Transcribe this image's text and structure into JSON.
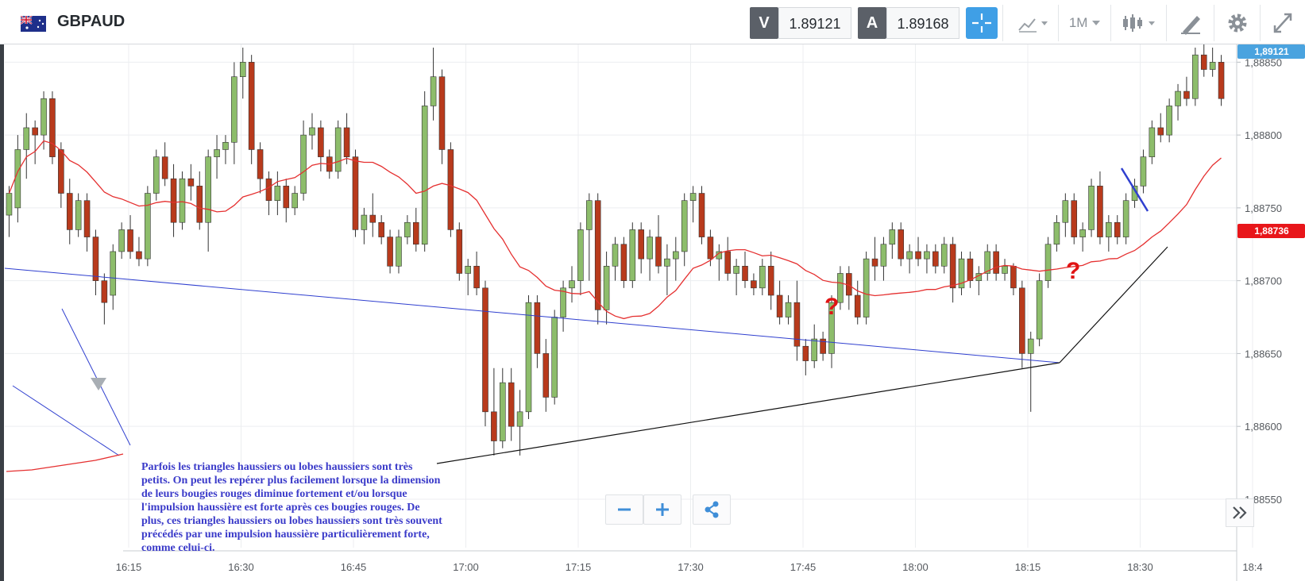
{
  "header": {
    "symbol": "GBPAUD",
    "sell_label": "V",
    "sell_price": "1.89121",
    "buy_label": "A",
    "buy_price": "1.89168",
    "timeframe": "1M"
  },
  "chart_data": {
    "type": "candlestick",
    "title": "GBPAUD",
    "y_ticks": [
      "1,88850",
      "1,88800",
      "1,88750",
      "1,88700",
      "1,88650",
      "1,88600",
      "1,88550"
    ],
    "x_ticks": [
      "16:15",
      "16:30",
      "16:45",
      "17:00",
      "17:15",
      "17:30",
      "17:45",
      "18:00",
      "18:15",
      "18:30",
      "18:4"
    ],
    "ylim": [
      1.8852,
      1.8886
    ],
    "current_price_tag": "1,89121",
    "ma_price_tag": "1,88736",
    "candles_ohlc": [
      [
        1.88745,
        1.88765,
        1.8873,
        1.8876
      ],
      [
        1.8875,
        1.888,
        1.8874,
        1.8879
      ],
      [
        1.8879,
        1.88815,
        1.8877,
        1.88805
      ],
      [
        1.88805,
        1.8881,
        1.8878,
        1.888
      ],
      [
        1.888,
        1.8883,
        1.8879,
        1.88825
      ],
      [
        1.88825,
        1.8883,
        1.8878,
        1.88785
      ],
      [
        1.8879,
        1.88795,
        1.8875,
        1.8876
      ],
      [
        1.8876,
        1.8877,
        1.88725,
        1.88735
      ],
      [
        1.88735,
        1.8876,
        1.8873,
        1.88755
      ],
      [
        1.88755,
        1.8876,
        1.8872,
        1.8873
      ],
      [
        1.8873,
        1.88735,
        1.8869,
        1.887
      ],
      [
        1.887,
        1.88705,
        1.8867,
        1.88685
      ],
      [
        1.8869,
        1.88725,
        1.8868,
        1.8872
      ],
      [
        1.8872,
        1.8874,
        1.88715,
        1.88735
      ],
      [
        1.88735,
        1.88745,
        1.88715,
        1.8872
      ],
      [
        1.8872,
        1.8873,
        1.8871,
        1.88715
      ],
      [
        1.88715,
        1.88765,
        1.8871,
        1.8876
      ],
      [
        1.8876,
        1.8879,
        1.88755,
        1.88785
      ],
      [
        1.88785,
        1.88795,
        1.88765,
        1.8877
      ],
      [
        1.8877,
        1.8878,
        1.8873,
        1.8874
      ],
      [
        1.8874,
        1.88775,
        1.88735,
        1.8877
      ],
      [
        1.8877,
        1.8878,
        1.88755,
        1.88765
      ],
      [
        1.88765,
        1.88775,
        1.88735,
        1.8874
      ],
      [
        1.8874,
        1.8879,
        1.8872,
        1.88785
      ],
      [
        1.88785,
        1.888,
        1.8877,
        1.8879
      ],
      [
        1.8879,
        1.888,
        1.8878,
        1.88795
      ],
      [
        1.88795,
        1.8885,
        1.8878,
        1.8884
      ],
      [
        1.8884,
        1.8886,
        1.88825,
        1.8885
      ],
      [
        1.8885,
        1.88855,
        1.8878,
        1.8879
      ],
      [
        1.8879,
        1.88795,
        1.8876,
        1.8877
      ],
      [
        1.8877,
        1.88775,
        1.88745,
        1.88755
      ],
      [
        1.88755,
        1.88775,
        1.88745,
        1.88765
      ],
      [
        1.88765,
        1.8877,
        1.8874,
        1.8875
      ],
      [
        1.8875,
        1.88765,
        1.88745,
        1.8876
      ],
      [
        1.8876,
        1.8881,
        1.88755,
        1.888
      ],
      [
        1.888,
        1.88815,
        1.8879,
        1.88805
      ],
      [
        1.88805,
        1.8881,
        1.88775,
        1.88785
      ],
      [
        1.88785,
        1.8879,
        1.8877,
        1.88775
      ],
      [
        1.88775,
        1.8881,
        1.8877,
        1.88805
      ],
      [
        1.88805,
        1.88815,
        1.8878,
        1.88785
      ],
      [
        1.88785,
        1.8879,
        1.8873,
        1.88735
      ],
      [
        1.88735,
        1.8875,
        1.88725,
        1.88745
      ],
      [
        1.88745,
        1.8876,
        1.8873,
        1.8874
      ],
      [
        1.8874,
        1.88745,
        1.88725,
        1.8873
      ],
      [
        1.8873,
        1.88735,
        1.88705,
        1.8871
      ],
      [
        1.8871,
        1.88735,
        1.88705,
        1.8873
      ],
      [
        1.8873,
        1.88745,
        1.88725,
        1.8874
      ],
      [
        1.8874,
        1.8875,
        1.8872,
        1.88725
      ],
      [
        1.88725,
        1.8883,
        1.8872,
        1.8882
      ],
      [
        1.8882,
        1.8886,
        1.8881,
        1.8884
      ],
      [
        1.8884,
        1.88845,
        1.8878,
        1.8879
      ],
      [
        1.8879,
        1.88795,
        1.8873,
        1.88735
      ],
      [
        1.88735,
        1.8874,
        1.887,
        1.88705
      ],
      [
        1.88705,
        1.88715,
        1.8869,
        1.8871
      ],
      [
        1.8871,
        1.8872,
        1.8869,
        1.88695
      ],
      [
        1.88695,
        1.887,
        1.886,
        1.8861
      ],
      [
        1.8861,
        1.8864,
        1.8858,
        1.8859
      ],
      [
        1.8859,
        1.8864,
        1.88585,
        1.8863
      ],
      [
        1.8863,
        1.8864,
        1.8859,
        1.886
      ],
      [
        1.886,
        1.88625,
        1.8858,
        1.8861
      ],
      [
        1.8861,
        1.8869,
        1.88605,
        1.88685
      ],
      [
        1.88685,
        1.8869,
        1.8864,
        1.8865
      ],
      [
        1.8865,
        1.8866,
        1.8861,
        1.8862
      ],
      [
        1.8862,
        1.8868,
        1.88615,
        1.88675
      ],
      [
        1.88675,
        1.887,
        1.88665,
        1.88695
      ],
      [
        1.88695,
        1.8871,
        1.88685,
        1.887
      ],
      [
        1.887,
        1.8874,
        1.8869,
        1.88735
      ],
      [
        1.88735,
        1.8876,
        1.887,
        1.88755
      ],
      [
        1.88755,
        1.8876,
        1.8867,
        1.8868
      ],
      [
        1.8868,
        1.8872,
        1.8867,
        1.8871
      ],
      [
        1.8871,
        1.8873,
        1.887,
        1.88725
      ],
      [
        1.88725,
        1.8873,
        1.88695,
        1.887
      ],
      [
        1.887,
        1.8874,
        1.88695,
        1.88735
      ],
      [
        1.88735,
        1.8874,
        1.88705,
        1.88715
      ],
      [
        1.88715,
        1.88735,
        1.887,
        1.8873
      ],
      [
        1.8873,
        1.88745,
        1.88705,
        1.8871
      ],
      [
        1.8871,
        1.88725,
        1.8869,
        1.88715
      ],
      [
        1.88715,
        1.8873,
        1.887,
        1.8872
      ],
      [
        1.8872,
        1.8876,
        1.8871,
        1.88755
      ],
      [
        1.88755,
        1.88765,
        1.8874,
        1.8876
      ],
      [
        1.8876,
        1.88765,
        1.88725,
        1.8873
      ],
      [
        1.8873,
        1.88735,
        1.8871,
        1.88715
      ],
      [
        1.88715,
        1.88725,
        1.887,
        1.8872
      ],
      [
        1.8872,
        1.8873,
        1.887,
        1.88705
      ],
      [
        1.88705,
        1.88715,
        1.8869,
        1.8871
      ],
      [
        1.8871,
        1.8872,
        1.88695,
        1.887
      ],
      [
        1.887,
        1.88705,
        1.8869,
        1.88695
      ],
      [
        1.88695,
        1.88715,
        1.8869,
        1.8871
      ],
      [
        1.8871,
        1.8872,
        1.8868,
        1.8869
      ],
      [
        1.8869,
        1.887,
        1.8867,
        1.88675
      ],
      [
        1.88675,
        1.8869,
        1.8867,
        1.88685
      ],
      [
        1.88685,
        1.887,
        1.88645,
        1.88655
      ],
      [
        1.88655,
        1.8866,
        1.88635,
        1.88645
      ],
      [
        1.88645,
        1.8867,
        1.8864,
        1.8866
      ],
      [
        1.8866,
        1.88665,
        1.88645,
        1.8865
      ],
      [
        1.8865,
        1.8869,
        1.8864,
        1.88685
      ],
      [
        1.88685,
        1.8871,
        1.8868,
        1.88705
      ],
      [
        1.88705,
        1.8871,
        1.8868,
        1.8869
      ],
      [
        1.8869,
        1.887,
        1.8867,
        1.88675
      ],
      [
        1.88675,
        1.8872,
        1.8867,
        1.88715
      ],
      [
        1.88715,
        1.8873,
        1.887,
        1.8871
      ],
      [
        1.8871,
        1.8873,
        1.887,
        1.88725
      ],
      [
        1.88725,
        1.8874,
        1.88715,
        1.88735
      ],
      [
        1.88735,
        1.8874,
        1.8871,
        1.88715
      ],
      [
        1.88715,
        1.88725,
        1.88705,
        1.8872
      ],
      [
        1.8872,
        1.8873,
        1.8871,
        1.88715
      ],
      [
        1.88715,
        1.88725,
        1.88705,
        1.8872
      ],
      [
        1.8872,
        1.88725,
        1.88705,
        1.8871
      ],
      [
        1.8871,
        1.8873,
        1.88705,
        1.88725
      ],
      [
        1.88725,
        1.8873,
        1.88685,
        1.88695
      ],
      [
        1.88695,
        1.8872,
        1.8869,
        1.88715
      ],
      [
        1.88715,
        1.8872,
        1.88695,
        1.887
      ],
      [
        1.887,
        1.8871,
        1.8869,
        1.88705
      ],
      [
        1.88705,
        1.88725,
        1.887,
        1.8872
      ],
      [
        1.8872,
        1.88725,
        1.887,
        1.88705
      ],
      [
        1.88705,
        1.88715,
        1.887,
        1.8871
      ],
      [
        1.8871,
        1.88712,
        1.8869,
        1.88695
      ],
      [
        1.88695,
        1.887,
        1.8864,
        1.8865
      ],
      [
        1.8865,
        1.88665,
        1.8861,
        1.8866
      ],
      [
        1.8866,
        1.88705,
        1.88655,
        1.887
      ],
      [
        1.887,
        1.8873,
        1.88695,
        1.88725
      ],
      [
        1.88725,
        1.88745,
        1.8872,
        1.8874
      ],
      [
        1.8874,
        1.8876,
        1.8873,
        1.88755
      ],
      [
        1.88755,
        1.8876,
        1.88725,
        1.8873
      ],
      [
        1.8873,
        1.8874,
        1.8872,
        1.88735
      ],
      [
        1.88735,
        1.8877,
        1.8873,
        1.88765
      ],
      [
        1.88765,
        1.88775,
        1.88725,
        1.8873
      ],
      [
        1.8873,
        1.88745,
        1.8872,
        1.8874
      ],
      [
        1.8874,
        1.88745,
        1.88725,
        1.8873
      ],
      [
        1.8873,
        1.8876,
        1.88725,
        1.88755
      ],
      [
        1.88755,
        1.8877,
        1.8875,
        1.88765
      ],
      [
        1.88765,
        1.8879,
        1.8876,
        1.88785
      ],
      [
        1.88785,
        1.8881,
        1.8878,
        1.88805
      ],
      [
        1.88805,
        1.88815,
        1.88795,
        1.888
      ],
      [
        1.888,
        1.88825,
        1.88795,
        1.8882
      ],
      [
        1.8882,
        1.88835,
        1.8881,
        1.8883
      ],
      [
        1.8883,
        1.8884,
        1.8882,
        1.88825
      ],
      [
        1.88825,
        1.8886,
        1.8882,
        1.88855
      ],
      [
        1.88855,
        1.88865,
        1.8884,
        1.88845
      ],
      [
        1.88845,
        1.8886,
        1.8884,
        1.8885
      ],
      [
        1.8885,
        1.88855,
        1.8882,
        1.88825
      ]
    ],
    "annotation_marks": [
      "?",
      "?"
    ]
  },
  "overlay": {
    "annotation_text": "Parfois les triangles haussiers ou lobes haussiers sont très petits. On peut les repérer plus facilement lorsque la dimension de leurs bougies rouges diminue fortement et/ou lorsque l'impulsion haussière est forte après ces bougies rouges. De plus, ces triangles haussiers ou lobes haussiers sont très souvent précédés par une impulsion haussière particulièrement forte, comme celui-ci."
  },
  "colors": {
    "bull": "#8dbd6b",
    "bear": "#b83a1c",
    "ma": "#e53030",
    "trend_blue": "#2f3fcf",
    "trend_black": "#111111",
    "accent": "#3f9fe6"
  }
}
